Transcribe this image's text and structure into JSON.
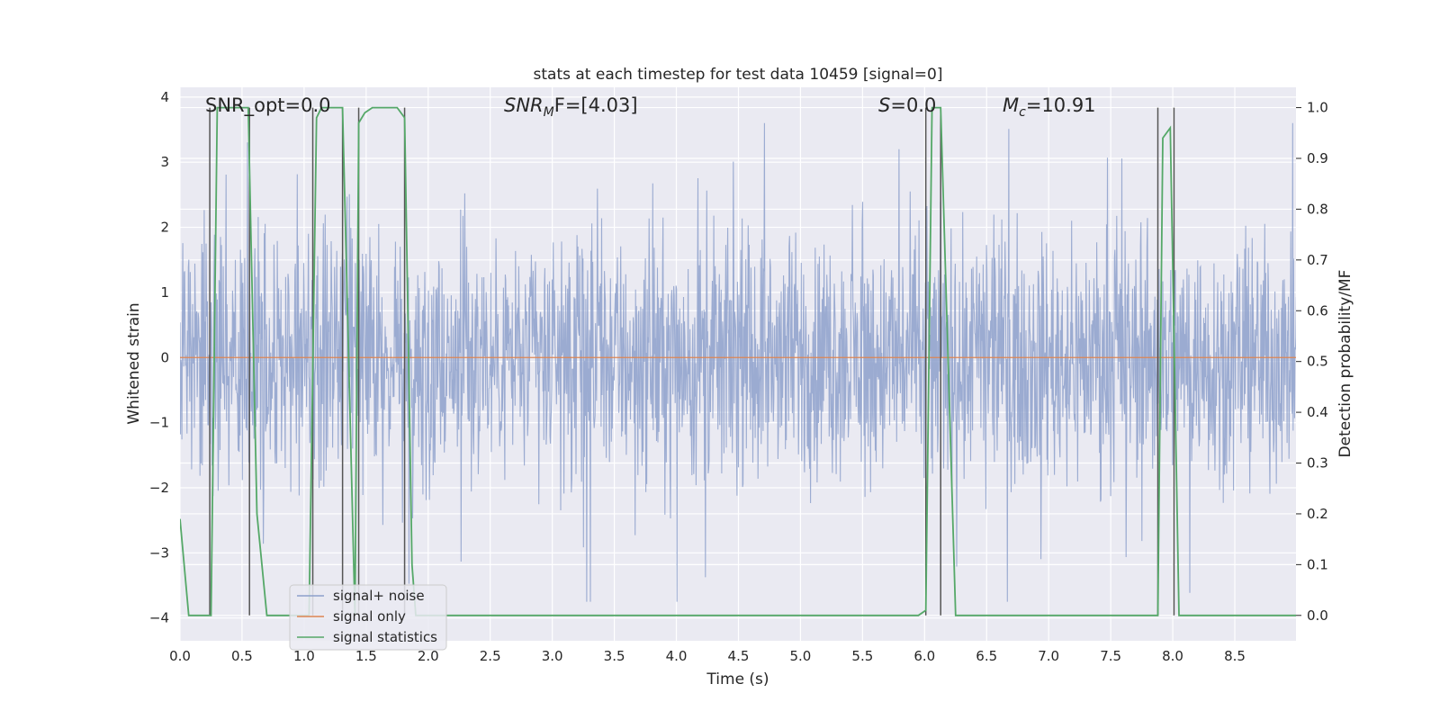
{
  "chart_data": {
    "type": "line",
    "title": "stats at each timestep for test data 10459 [signal=0]",
    "xlabel": "Time (s)",
    "ylabel_left": "Whitened strain",
    "ylabel_right": "Detection probability/MF",
    "xlim": [
      0.0,
      9.0
    ],
    "ylim_left": [
      -4.35,
      4.15
    ],
    "ylim_right": [
      -0.05,
      1.04
    ],
    "x_ticks": [
      "0.0",
      "0.5",
      "1.0",
      "1.5",
      "2.0",
      "2.5",
      "3.0",
      "3.5",
      "4.0",
      "4.5",
      "5.0",
      "5.5",
      "6.0",
      "6.5",
      "7.0",
      "7.5",
      "8.0",
      "8.5"
    ],
    "y_ticks_left": [
      "4",
      "3",
      "2",
      "1",
      "0",
      "−1",
      "−2",
      "−3",
      "−4"
    ],
    "y_ticks_right": [
      "1.0",
      "0.9",
      "0.8",
      "0.7",
      "0.6",
      "0.5",
      "0.4",
      "0.3",
      "0.2",
      "0.1",
      "0.0"
    ],
    "grid": true,
    "legend_position": "lower-left",
    "annotations": {
      "snr_opt": "SNR_opt=0.0",
      "snr_mf_prefix": "SNR",
      "snr_mf_sub": "M",
      "snr_mf_suffix": "F=[4.03]",
      "s_label": "S",
      "s_value": "=0.0",
      "mc_label": "M",
      "mc_sub": "c",
      "mc_value": "=10.91"
    },
    "series": [
      {
        "name": "signal+ noise",
        "color": "#8da0cb",
        "axis": "left",
        "description": "noisy whitened strain, approx. within ±2 with spikes to ±3.6",
        "envelope": {
          "core": 1.35,
          "spike_max": 3.6
        }
      },
      {
        "name": "signal only",
        "color": "#dd8452",
        "axis": "left",
        "x": [
          0.0,
          9.0
        ],
        "y": [
          0.0,
          0.0
        ]
      },
      {
        "name": "signal statistics",
        "color": "#55a868",
        "axis": "right",
        "x": [
          0.0,
          0.07,
          0.25,
          0.3,
          0.55,
          0.62,
          0.7,
          1.04,
          1.1,
          1.14,
          1.2,
          1.31,
          1.41,
          1.44,
          1.49,
          1.55,
          1.75,
          1.81,
          1.87,
          1.9,
          2.0,
          5.95,
          6.01,
          6.06,
          6.13,
          6.25,
          6.4,
          6.5,
          7.88,
          7.92,
          7.98,
          8.05,
          9.0
        ],
        "y": [
          0.19,
          0.0,
          0.0,
          1.0,
          1.0,
          0.2,
          0.0,
          0.0,
          0.98,
          1.0,
          1.0,
          1.0,
          0.0,
          0.97,
          0.99,
          1.0,
          1.0,
          0.98,
          0.1,
          0.0,
          0.0,
          0.0,
          0.01,
          1.0,
          1.0,
          0.0,
          0.0,
          0.0,
          0.0,
          0.94,
          0.96,
          0.0,
          0.0
        ]
      }
    ],
    "vertical_markers": {
      "color": "#555555",
      "x": [
        0.24,
        0.56,
        1.07,
        1.31,
        1.44,
        1.81,
        6.01,
        6.13,
        7.88,
        8.01
      ]
    }
  }
}
